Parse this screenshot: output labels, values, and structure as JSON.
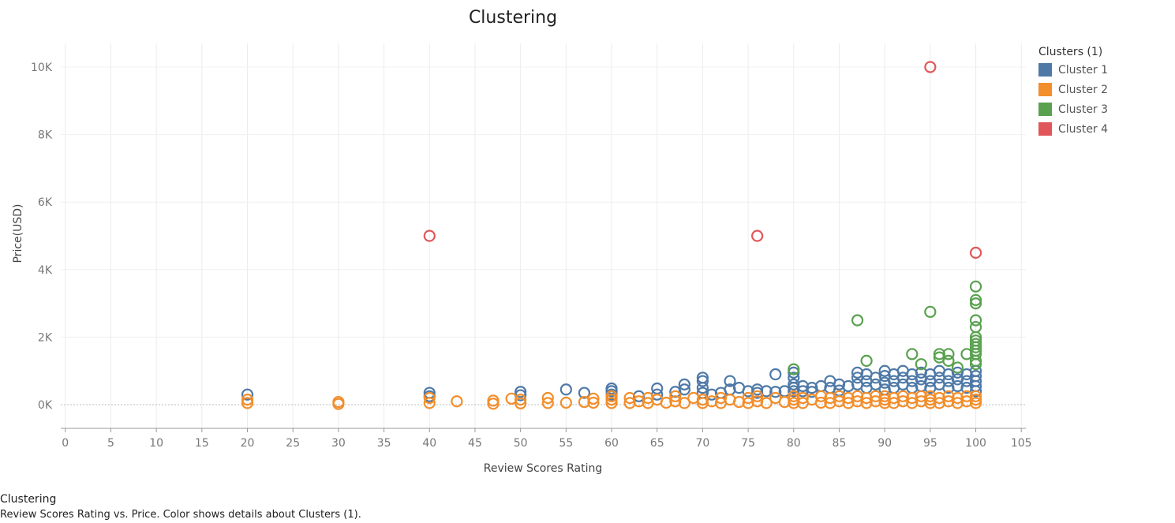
{
  "chart_data": {
    "type": "scatter",
    "title": "Clustering",
    "xlabel": "Review Scores Rating",
    "ylabel": "Price(USD)",
    "xlim": [
      -0.5,
      105.5
    ],
    "ylim": [
      -700,
      10700
    ],
    "x_ticks": [
      0,
      5,
      10,
      15,
      20,
      25,
      30,
      35,
      40,
      45,
      50,
      55,
      60,
      65,
      70,
      75,
      80,
      85,
      90,
      95,
      100,
      105
    ],
    "y_ticks": [
      0,
      2000,
      4000,
      6000,
      8000,
      10000
    ],
    "y_tick_labels": [
      "0K",
      "2K",
      "4K",
      "6K",
      "8K",
      "10K"
    ],
    "grid": true,
    "marker": "hollow-circle",
    "legend": {
      "title": "Clusters (1)",
      "placement": "right"
    },
    "series": [
      {
        "name": "Cluster 1",
        "color": "#4e79a7",
        "points": [
          [
            20,
            300
          ],
          [
            40,
            350
          ],
          [
            40,
            250
          ],
          [
            50,
            380
          ],
          [
            50,
            280
          ],
          [
            55,
            450
          ],
          [
            57,
            350
          ],
          [
            60,
            480
          ],
          [
            60,
            400
          ],
          [
            60,
            300
          ],
          [
            63,
            250
          ],
          [
            65,
            480
          ],
          [
            65,
            300
          ],
          [
            67,
            380
          ],
          [
            68,
            600
          ],
          [
            68,
            450
          ],
          [
            70,
            800
          ],
          [
            70,
            700
          ],
          [
            70,
            500
          ],
          [
            70,
            350
          ],
          [
            71,
            300
          ],
          [
            72,
            350
          ],
          [
            73,
            700
          ],
          [
            73,
            450
          ],
          [
            74,
            500
          ],
          [
            75,
            400
          ],
          [
            76,
            450
          ],
          [
            76,
            350
          ],
          [
            77,
            400
          ],
          [
            78,
            900
          ],
          [
            78,
            380
          ],
          [
            79,
            400
          ],
          [
            80,
            950
          ],
          [
            80,
            800
          ],
          [
            80,
            600
          ],
          [
            80,
            500
          ],
          [
            80,
            400
          ],
          [
            81,
            550
          ],
          [
            81,
            400
          ],
          [
            82,
            500
          ],
          [
            82,
            380
          ],
          [
            83,
            550
          ],
          [
            84,
            700
          ],
          [
            84,
            500
          ],
          [
            85,
            600
          ],
          [
            85,
            420
          ],
          [
            86,
            550
          ],
          [
            87,
            950
          ],
          [
            87,
            800
          ],
          [
            87,
            600
          ],
          [
            88,
            900
          ],
          [
            88,
            700
          ],
          [
            88,
            500
          ],
          [
            89,
            800
          ],
          [
            89,
            600
          ],
          [
            90,
            1000
          ],
          [
            90,
            850
          ],
          [
            90,
            650
          ],
          [
            90,
            450
          ],
          [
            91,
            900
          ],
          [
            91,
            700
          ],
          [
            91,
            500
          ],
          [
            92,
            1000
          ],
          [
            92,
            800
          ],
          [
            92,
            600
          ],
          [
            93,
            900
          ],
          [
            93,
            700
          ],
          [
            93,
            500
          ],
          [
            94,
            950
          ],
          [
            94,
            750
          ],
          [
            94,
            550
          ],
          [
            95,
            900
          ],
          [
            95,
            700
          ],
          [
            95,
            500
          ],
          [
            96,
            1000
          ],
          [
            96,
            800
          ],
          [
            96,
            600
          ],
          [
            97,
            900
          ],
          [
            97,
            700
          ],
          [
            97,
            500
          ],
          [
            98,
            950
          ],
          [
            98,
            750
          ],
          [
            98,
            550
          ],
          [
            99,
            900
          ],
          [
            99,
            700
          ],
          [
            99,
            500
          ],
          [
            100,
            1000
          ],
          [
            100,
            850
          ],
          [
            100,
            700
          ],
          [
            100,
            550
          ],
          [
            100,
            400
          ]
        ]
      },
      {
        "name": "Cluster 2",
        "color": "#f28e2b",
        "points": [
          [
            20,
            150
          ],
          [
            20,
            50
          ],
          [
            30,
            80
          ],
          [
            30,
            20
          ],
          [
            40,
            200
          ],
          [
            40,
            50
          ],
          [
            43,
            100
          ],
          [
            47,
            120
          ],
          [
            47,
            30
          ],
          [
            49,
            180
          ],
          [
            50,
            150
          ],
          [
            50,
            40
          ],
          [
            53,
            200
          ],
          [
            53,
            50
          ],
          [
            55,
            60
          ],
          [
            57,
            80
          ],
          [
            58,
            180
          ],
          [
            58,
            60
          ],
          [
            60,
            250
          ],
          [
            60,
            150
          ],
          [
            60,
            50
          ],
          [
            62,
            200
          ],
          [
            62,
            50
          ],
          [
            63,
            100
          ],
          [
            64,
            200
          ],
          [
            64,
            50
          ],
          [
            65,
            150
          ],
          [
            66,
            60
          ],
          [
            67,
            250
          ],
          [
            67,
            100
          ],
          [
            68,
            50
          ],
          [
            69,
            200
          ],
          [
            70,
            150
          ],
          [
            70,
            50
          ],
          [
            71,
            100
          ],
          [
            72,
            200
          ],
          [
            72,
            50
          ],
          [
            73,
            150
          ],
          [
            74,
            80
          ],
          [
            75,
            200
          ],
          [
            75,
            50
          ],
          [
            76,
            250
          ],
          [
            76,
            100
          ],
          [
            77,
            50
          ],
          [
            78,
            200
          ],
          [
            79,
            80
          ],
          [
            80,
            250
          ],
          [
            80,
            150
          ],
          [
            80,
            50
          ],
          [
            81,
            200
          ],
          [
            81,
            50
          ],
          [
            82,
            150
          ],
          [
            83,
            250
          ],
          [
            83,
            60
          ],
          [
            84,
            200
          ],
          [
            84,
            50
          ],
          [
            85,
            250
          ],
          [
            85,
            100
          ],
          [
            86,
            200
          ],
          [
            86,
            50
          ],
          [
            87,
            250
          ],
          [
            87,
            100
          ],
          [
            88,
            200
          ],
          [
            88,
            50
          ],
          [
            89,
            250
          ],
          [
            89,
            100
          ],
          [
            90,
            250
          ],
          [
            90,
            150
          ],
          [
            90,
            50
          ],
          [
            91,
            200
          ],
          [
            91,
            50
          ],
          [
            92,
            250
          ],
          [
            92,
            100
          ],
          [
            93,
            200
          ],
          [
            93,
            50
          ],
          [
            94,
            250
          ],
          [
            94,
            100
          ],
          [
            95,
            250
          ],
          [
            95,
            150
          ],
          [
            95,
            50
          ],
          [
            96,
            200
          ],
          [
            96,
            50
          ],
          [
            97,
            250
          ],
          [
            97,
            100
          ],
          [
            98,
            200
          ],
          [
            98,
            50
          ],
          [
            99,
            250
          ],
          [
            99,
            100
          ],
          [
            100,
            250
          ],
          [
            100,
            150
          ],
          [
            100,
            50
          ]
        ]
      },
      {
        "name": "Cluster 3",
        "color": "#59a14f",
        "points": [
          [
            80,
            1050
          ],
          [
            87,
            2500
          ],
          [
            88,
            1300
          ],
          [
            93,
            1500
          ],
          [
            94,
            1200
          ],
          [
            95,
            2750
          ],
          [
            96,
            1500
          ],
          [
            96,
            1400
          ],
          [
            97,
            1500
          ],
          [
            97,
            1300
          ],
          [
            98,
            1100
          ],
          [
            99,
            1500
          ],
          [
            100,
            3500
          ],
          [
            100,
            3100
          ],
          [
            100,
            3000
          ],
          [
            100,
            2500
          ],
          [
            100,
            2300
          ],
          [
            100,
            2000
          ],
          [
            100,
            1900
          ],
          [
            100,
            1800
          ],
          [
            100,
            1700
          ],
          [
            100,
            1600
          ],
          [
            100,
            1500
          ],
          [
            100,
            1300
          ],
          [
            100,
            1200
          ]
        ]
      },
      {
        "name": "Cluster 4",
        "color": "#e15759",
        "points": [
          [
            40,
            5000
          ],
          [
            76,
            5000
          ],
          [
            95,
            10000
          ],
          [
            100,
            4500
          ]
        ]
      }
    ]
  },
  "caption": {
    "title": "Clustering",
    "text": "Review Scores Rating vs. Price.  Color shows details about Clusters (1)."
  }
}
